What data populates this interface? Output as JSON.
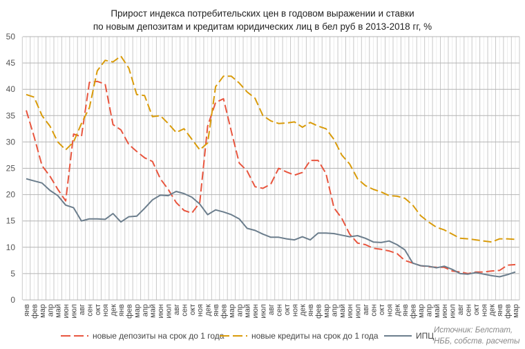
{
  "chart_data": {
    "type": "line",
    "title": "Прирост индекса потребительских цен в годовом выражении и ставки по новым депозитам и кредитам юридических лиц в бел руб в 2013-2018 гг, %",
    "title_lines": [
      "Прирост индекса потребительских цен в годовом выражении и ставки",
      "по новым депозитам и кредитам юридических лиц в бел руб в 2013-2018 гг, %"
    ],
    "xlabel": "",
    "ylabel": "",
    "ylim": [
      0,
      50
    ],
    "yticks": [
      0,
      5,
      10,
      15,
      20,
      25,
      30,
      35,
      40,
      45,
      50
    ],
    "grid": true,
    "legend_position": "bottom",
    "categories": [
      "янв",
      "фев",
      "мар",
      "апр",
      "май",
      "июн",
      "июл",
      "авг",
      "сен",
      "окт",
      "ноя",
      "дек",
      "янв",
      "фев",
      "мар",
      "апр",
      "май",
      "июн",
      "июл",
      "авг",
      "сен",
      "окт",
      "ноя",
      "дек",
      "янв",
      "фев",
      "мар",
      "апр",
      "май",
      "июн",
      "июл",
      "авг",
      "сен",
      "окт",
      "ноя",
      "дек",
      "янв",
      "фев",
      "мар",
      "апр",
      "май",
      "июн",
      "июл",
      "авг",
      "сен",
      "окт",
      "ноя",
      "дек",
      "янв",
      "фев",
      "мар",
      "апр",
      "май",
      "июн",
      "июл",
      "авг",
      "сен",
      "окт",
      "ноя",
      "дек",
      "янв",
      "фев",
      "мар"
    ],
    "series": [
      {
        "name": "новые депозиты на срок до 1 года",
        "color": "#e8553e",
        "dash": true,
        "values": [
          36,
          31,
          25.5,
          23.5,
          21,
          18.8,
          31.5,
          31,
          41.3,
          41.5,
          41,
          33.3,
          32.3,
          29.5,
          28.2,
          27,
          26.3,
          23,
          21,
          18.5,
          17,
          16.5,
          18.5,
          33,
          37.5,
          38.2,
          32,
          26,
          24.5,
          21.5,
          21.2,
          22,
          25,
          24.3,
          23.7,
          24.2,
          26.5,
          26.5,
          24,
          17.5,
          15.5,
          12.5,
          10.8,
          10.5,
          9.8,
          9.6,
          9.3,
          8.8,
          7.5,
          7,
          6.5,
          6.3,
          6.2,
          6.2,
          5.5,
          5.3,
          5,
          5.3,
          5.3,
          5.5,
          5.6,
          6.6,
          6.7
        ]
      },
      {
        "name": "новые кредиты на срок до 1 года",
        "color": "#d99b0a",
        "dash": true,
        "values": [
          39,
          38.5,
          35,
          33,
          30,
          28.5,
          30,
          33.5,
          36.5,
          43.5,
          45.5,
          45.2,
          46.3,
          44,
          39,
          38.8,
          34.8,
          35,
          33.5,
          31.8,
          32.5,
          30.5,
          28.5,
          29.8,
          40.5,
          42.5,
          42.5,
          41.2,
          39.5,
          38.3,
          35,
          34,
          33.5,
          33.6,
          33.8,
          32.8,
          33.7,
          33,
          32.5,
          30.5,
          27.5,
          25.8,
          23,
          21.7,
          21,
          20.5,
          19.8,
          19.7,
          19.3,
          18,
          16,
          14.8,
          13.8,
          13.3,
          12.5,
          11.7,
          11.6,
          11.4,
          11.2,
          11,
          11.6,
          11.6,
          11.5
        ]
      },
      {
        "name": "ИПЦ",
        "color": "#6b7d8c",
        "dash": false,
        "values": [
          23,
          22.6,
          22.2,
          20.8,
          19.8,
          18,
          17.5,
          15,
          15.4,
          15.4,
          15.3,
          16.4,
          14.8,
          15.8,
          15.9,
          17.4,
          19,
          19.9,
          19.8,
          20.6,
          20.2,
          19.5,
          18.2,
          16.2,
          17.1,
          16.7,
          16.2,
          15.4,
          13.6,
          13.2,
          12.5,
          11.9,
          11.9,
          11.6,
          11.4,
          12,
          11.4,
          12.7,
          12.7,
          12.6,
          12.3,
          12,
          12.2,
          11.7,
          11,
          10.9,
          11.2,
          10.5,
          9.5,
          7,
          6.5,
          6.4,
          6.1,
          6.4,
          5.8,
          5,
          4.9,
          5.2,
          4.9,
          4.6,
          4.4,
          4.8,
          5.3
        ]
      }
    ],
    "source": [
      "Источник: Белстат,",
      "НББ, собств. расчеты"
    ]
  }
}
